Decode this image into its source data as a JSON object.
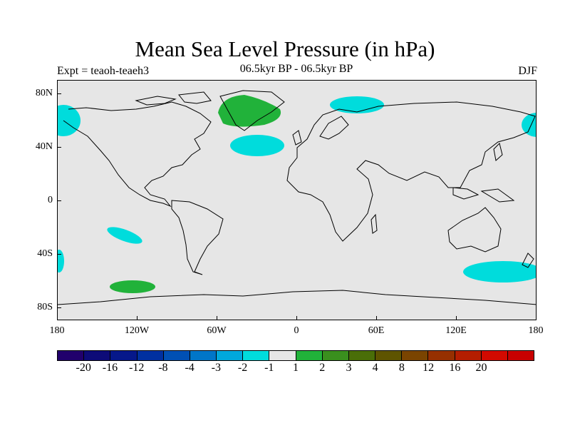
{
  "header": {
    "title": "Mean Sea Level Pressure (in hPa)",
    "experiment": "Expt = teaoh-teaeh3",
    "subtitle": "06.5kyr BP - 06.5kyr BP",
    "season": "DJF"
  },
  "axes": {
    "y_ticks": [
      "80N",
      "40N",
      "0",
      "40S",
      "80S"
    ],
    "x_ticks": [
      "180",
      "120W",
      "60W",
      "0",
      "60E",
      "120E",
      "180"
    ]
  },
  "legend": {
    "colors": [
      "#21006c",
      "#0d0b78",
      "#06188a",
      "#0030a0",
      "#0050b4",
      "#0076c8",
      "#00a8dc",
      "#00dcdc",
      "#e6e6e6",
      "#21b23a",
      "#3a8f1e",
      "#4a6e08",
      "#5e5400",
      "#7a4400",
      "#963000",
      "#b41e00",
      "#d20a00",
      "#c80000"
    ],
    "labels": [
      "-20",
      "-16",
      "-12",
      "-8",
      "-4",
      "-3",
      "-2",
      "-1",
      "1",
      "2",
      "3",
      "4",
      "8",
      "12",
      "16",
      "20"
    ]
  },
  "anomaly_colors": {
    "negative": "#00dcdc",
    "positive": "#21b23a",
    "background": "#e6e6e6"
  }
}
